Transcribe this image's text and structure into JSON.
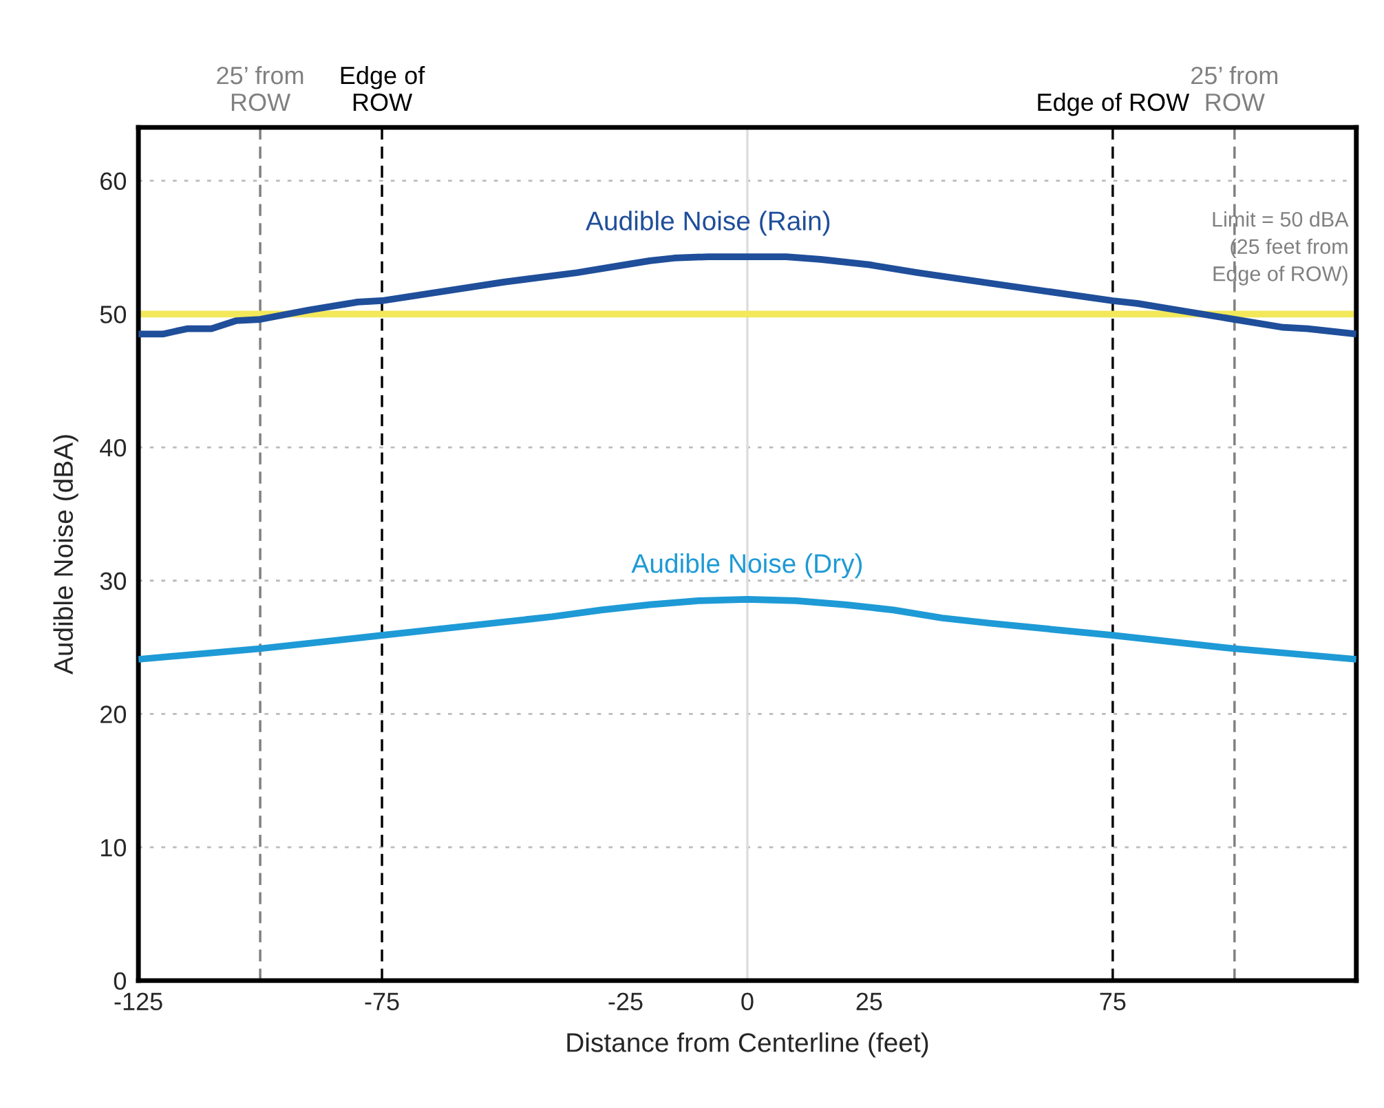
{
  "chart_data": {
    "type": "line",
    "xlabel": "Distance from Centerline (feet)",
    "ylabel": "Audible Noise (dBA)",
    "xlim": [
      -125,
      125
    ],
    "xticks": [
      -125,
      -75,
      -25,
      0,
      25,
      75
    ],
    "ylim": [
      0,
      64
    ],
    "yticks": [
      0,
      10,
      20,
      30,
      40,
      50,
      60
    ],
    "grid": "y",
    "legend": false,
    "line_style": "solid",
    "series": [
      {
        "name": "Audible Noise (Rain)",
        "color": "#1f4e9a",
        "x": [
          -125,
          -120,
          -115,
          -110,
          -105,
          -100,
          -90,
          -80,
          -75,
          -50,
          -35,
          -25,
          -20,
          -15,
          -8,
          8,
          15,
          25,
          35,
          50,
          75,
          80,
          90,
          100,
          110,
          115,
          125
        ],
        "values": [
          48.5,
          48.5,
          48.9,
          48.9,
          49.5,
          49.6,
          50.3,
          50.9,
          51.0,
          52.4,
          53.1,
          53.7,
          54.0,
          54.2,
          54.3,
          54.3,
          54.1,
          53.7,
          53.1,
          52.3,
          51.0,
          50.8,
          50.2,
          49.6,
          49.0,
          48.9,
          48.5
        ]
      },
      {
        "name": "Audible Noise (Dry)",
        "color": "#1e9ad6",
        "x": [
          -125,
          -100,
          -75,
          -50,
          -40,
          -30,
          -20,
          -10,
          0,
          10,
          20,
          30,
          40,
          50,
          75,
          100,
          125
        ],
        "values": [
          24.1,
          24.9,
          25.9,
          26.9,
          27.3,
          27.8,
          28.2,
          28.5,
          28.6,
          28.5,
          28.2,
          27.8,
          27.2,
          26.8,
          25.9,
          24.9,
          24.1
        ]
      }
    ],
    "ref_lines": [
      {
        "axis": "x",
        "value": -100,
        "label": "25’ from\nROW",
        "color": "#808080",
        "line_style": "dashed"
      },
      {
        "axis": "x",
        "value": -75,
        "label": "Edge of\nROW",
        "color": "#000000",
        "line_style": "dashed"
      },
      {
        "axis": "x",
        "value": 75,
        "label": "Edge of ROW",
        "color": "#000000",
        "line_style": "dashed"
      },
      {
        "axis": "x",
        "value": 100,
        "label": "25’ from\nROW",
        "color": "#808080",
        "line_style": "dashed"
      },
      {
        "axis": "x",
        "value": 0,
        "color": "#dddddd",
        "line_style": "solid"
      },
      {
        "axis": "y",
        "value": 50,
        "label": "Limit = 50 dBA\n(25 feet from\nEdge of ROW)",
        "color": "#f2e85a",
        "line_style": "solid"
      }
    ]
  }
}
